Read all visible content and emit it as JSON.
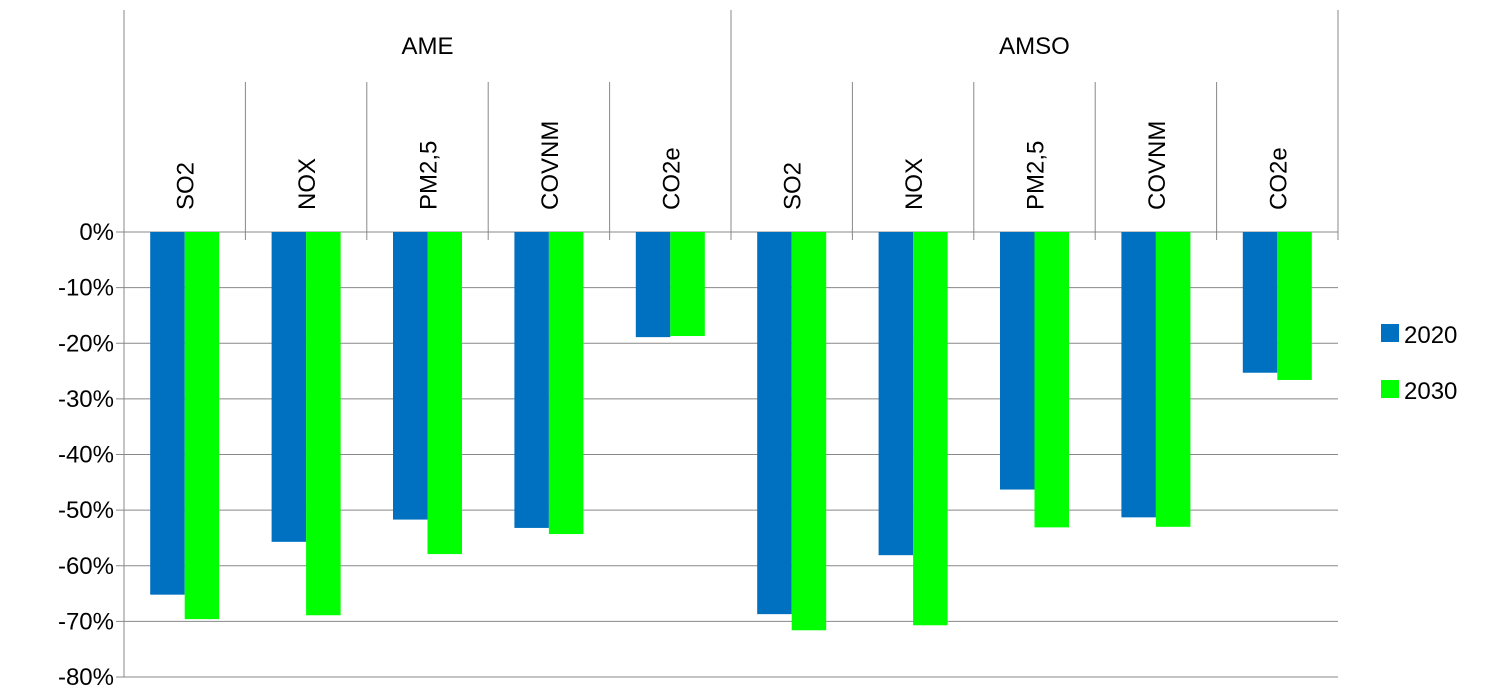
{
  "chart_data": {
    "type": "bar",
    "title": "",
    "xlabel": "",
    "ylabel": "",
    "ylim": [
      -80,
      0
    ],
    "y_ticks": [
      0,
      -10,
      -20,
      -30,
      -40,
      -50,
      -60,
      -70,
      -80
    ],
    "y_tick_labels": [
      "0%",
      "-10%",
      "-20%",
      "-30%",
      "-40%",
      "-50%",
      "-60%",
      "-70%",
      "-80%"
    ],
    "grid": true,
    "legend_position": "right",
    "groups": [
      {
        "label": "AME",
        "categories": [
          "SO2",
          "NOX",
          "PM2,5",
          "COVNM",
          "CO2e"
        ]
      },
      {
        "label": "AMSO",
        "categories": [
          "SO2",
          "NOX",
          "PM2,5",
          "COVNM",
          "CO2e"
        ]
      }
    ],
    "series": [
      {
        "name": "2020",
        "color": "#0070C0",
        "values": [
          -65.2,
          -55.7,
          -51.7,
          -53.2,
          -18.9,
          -68.7,
          -58.1,
          -46.3,
          -51.3,
          -25.3
        ]
      },
      {
        "name": "2030",
        "color": "#00FF00",
        "values": [
          -69.6,
          -68.9,
          -57.9,
          -54.3,
          -18.7,
          -71.6,
          -70.7,
          -53.1,
          -53.0,
          -26.6
        ]
      }
    ]
  }
}
